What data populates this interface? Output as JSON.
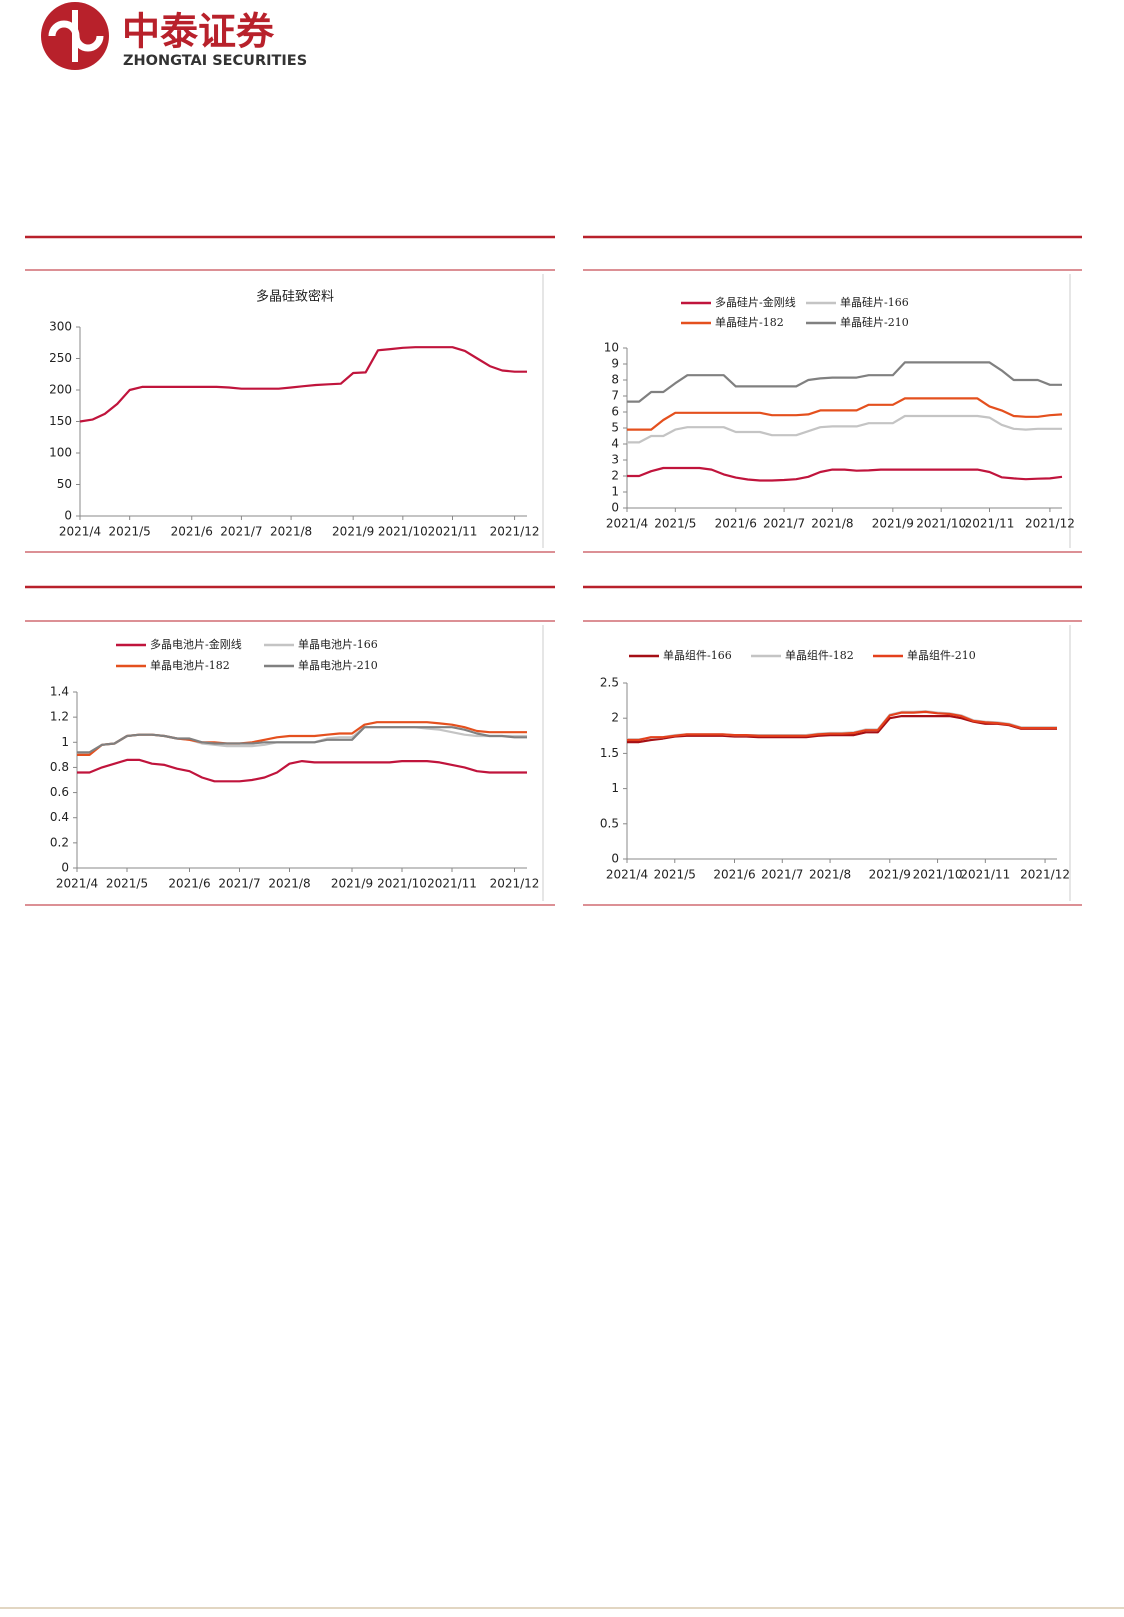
{
  "header": {
    "brand": "中泰证券",
    "brand_en": "ZHONGTAI SECURITIES"
  },
  "chart_data": [
    {
      "type": "line",
      "title": "多晶硅致密料",
      "color": "#c0143c",
      "categories": [
        "2021/4",
        null,
        null,
        null,
        "2021/5",
        null,
        null,
        null,
        null,
        "2021/6",
        null,
        null,
        null,
        "2021/7",
        null,
        null,
        null,
        "2021/8",
        null,
        null,
        null,
        null,
        "2021/9",
        null,
        null,
        null,
        "2021/10",
        null,
        null,
        null,
        "2021/11",
        null,
        null,
        null,
        null,
        "2021/12",
        null
      ],
      "values": [
        150,
        153,
        162,
        178,
        200,
        205,
        205,
        205,
        205,
        205,
        205,
        205,
        204,
        202,
        202,
        202,
        202,
        204,
        206,
        208,
        209,
        210,
        227,
        228,
        263,
        265,
        267,
        268,
        268,
        268,
        268,
        262,
        250,
        238,
        231,
        229,
        229
      ],
      "ylim": [
        0,
        300
      ],
      "yticks": [
        0,
        50,
        100,
        150,
        200,
        250,
        300
      ],
      "grid": false
    },
    {
      "type": "line",
      "categories": [
        "2021/4",
        null,
        null,
        null,
        "2021/5",
        null,
        null,
        null,
        null,
        "2021/6",
        null,
        null,
        null,
        "2021/7",
        null,
        null,
        null,
        "2021/8",
        null,
        null,
        null,
        null,
        "2021/9",
        null,
        null,
        null,
        "2021/10",
        null,
        null,
        null,
        "2021/11",
        null,
        null,
        null,
        null,
        "2021/12",
        null
      ],
      "series": [
        {
          "name": "多晶硅片-金刚线",
          "color": "#c0143c",
          "values": [
            2.0,
            2.0,
            2.3,
            2.5,
            2.5,
            2.5,
            2.5,
            2.4,
            2.1,
            1.9,
            1.78,
            1.72,
            1.72,
            1.75,
            1.8,
            1.95,
            2.25,
            2.4,
            2.4,
            2.33,
            2.35,
            2.4,
            2.4,
            2.4,
            2.4,
            2.4,
            2.4,
            2.4,
            2.4,
            2.4,
            2.25,
            1.92,
            1.85,
            1.8,
            1.83,
            1.85,
            1.95
          ]
        },
        {
          "name": "单晶硅片-166",
          "color": "#c4c4c4",
          "values": [
            4.1,
            4.1,
            4.5,
            4.5,
            4.9,
            5.05,
            5.05,
            5.05,
            5.05,
            4.75,
            4.75,
            4.75,
            4.55,
            4.55,
            4.55,
            4.8,
            5.05,
            5.1,
            5.1,
            5.1,
            5.3,
            5.3,
            5.3,
            5.75,
            5.75,
            5.75,
            5.75,
            5.75,
            5.75,
            5.75,
            5.65,
            5.2,
            4.95,
            4.9,
            4.95,
            4.95,
            4.95
          ]
        },
        {
          "name": "单晶硅片-182",
          "color": "#e4501e",
          "values": [
            4.9,
            4.9,
            4.9,
            5.5,
            5.95,
            5.95,
            5.95,
            5.95,
            5.95,
            5.95,
            5.95,
            5.95,
            5.8,
            5.8,
            5.8,
            5.85,
            6.1,
            6.1,
            6.1,
            6.1,
            6.45,
            6.45,
            6.45,
            6.85,
            6.85,
            6.85,
            6.85,
            6.85,
            6.85,
            6.85,
            6.35,
            6.1,
            5.75,
            5.7,
            5.7,
            5.8,
            5.85
          ]
        },
        {
          "name": "单晶硅片-210",
          "color": "#808080",
          "values": [
            6.65,
            6.65,
            7.25,
            7.25,
            7.8,
            8.3,
            8.3,
            8.3,
            8.3,
            7.6,
            7.6,
            7.6,
            7.6,
            7.6,
            7.6,
            8.0,
            8.1,
            8.15,
            8.15,
            8.15,
            8.3,
            8.3,
            8.3,
            9.1,
            9.1,
            9.1,
            9.1,
            9.1,
            9.1,
            9.1,
            9.1,
            8.6,
            8.0,
            8.0,
            8.0,
            7.7,
            7.7
          ]
        }
      ],
      "ylim": [
        0,
        10
      ],
      "yticks": [
        0,
        1,
        2,
        3,
        4,
        5,
        6,
        7,
        8,
        9,
        10
      ],
      "grid": false
    },
    {
      "type": "line",
      "categories": [
        "2021/4",
        null,
        null,
        null,
        "2021/5",
        null,
        null,
        null,
        null,
        "2021/6",
        null,
        null,
        null,
        "2021/7",
        null,
        null,
        null,
        "2021/8",
        null,
        null,
        null,
        null,
        "2021/9",
        null,
        null,
        null,
        "2021/10",
        null,
        null,
        null,
        "2021/11",
        null,
        null,
        null,
        null,
        "2021/12",
        null
      ],
      "series": [
        {
          "name": "多晶电池片-金刚线",
          "color": "#c0143c",
          "values": [
            0.76,
            0.76,
            0.8,
            0.83,
            0.86,
            0.86,
            0.83,
            0.82,
            0.79,
            0.77,
            0.72,
            0.69,
            0.69,
            0.69,
            0.7,
            0.72,
            0.76,
            0.83,
            0.85,
            0.84,
            0.84,
            0.84,
            0.84,
            0.84,
            0.84,
            0.84,
            0.85,
            0.85,
            0.85,
            0.84,
            0.82,
            0.8,
            0.77,
            0.76,
            0.76,
            0.76,
            0.76
          ]
        },
        {
          "name": "单晶电池片-166",
          "color": "#c4c4c4",
          "values": [
            0.91,
            0.91,
            0.98,
            0.99,
            1.05,
            1.06,
            1.06,
            1.05,
            1.03,
            1.02,
            0.99,
            0.98,
            0.97,
            0.97,
            0.97,
            0.98,
            1.0,
            1.0,
            1.0,
            1.0,
            1.03,
            1.04,
            1.04,
            1.12,
            1.12,
            1.12,
            1.12,
            1.12,
            1.11,
            1.1,
            1.08,
            1.06,
            1.05,
            1.05,
            1.05,
            1.05,
            1.05
          ]
        },
        {
          "name": "单晶电池片-182",
          "color": "#e4501e",
          "values": [
            0.9,
            0.9,
            0.98,
            0.99,
            1.05,
            1.06,
            1.06,
            1.05,
            1.03,
            1.02,
            1.0,
            1.0,
            0.99,
            0.99,
            1.0,
            1.02,
            1.04,
            1.05,
            1.05,
            1.05,
            1.06,
            1.07,
            1.07,
            1.14,
            1.16,
            1.16,
            1.16,
            1.16,
            1.16,
            1.15,
            1.14,
            1.12,
            1.09,
            1.08,
            1.08,
            1.08,
            1.08
          ]
        },
        {
          "name": "单晶电池片-210",
          "color": "#808080",
          "values": [
            0.92,
            0.92,
            0.98,
            0.99,
            1.05,
            1.06,
            1.06,
            1.05,
            1.03,
            1.03,
            1.0,
            0.99,
            0.99,
            0.99,
            0.99,
            1.0,
            1.0,
            1.0,
            1.0,
            1.0,
            1.02,
            1.02,
            1.02,
            1.12,
            1.12,
            1.12,
            1.12,
            1.12,
            1.12,
            1.12,
            1.12,
            1.1,
            1.07,
            1.05,
            1.05,
            1.04,
            1.04
          ]
        }
      ],
      "ylim": [
        0,
        1.4
      ],
      "yticks": [
        0,
        0.2,
        0.4,
        0.6,
        0.8,
        1,
        1.2,
        1.4
      ],
      "grid": false
    },
    {
      "type": "line",
      "categories": [
        "2021/4",
        null,
        null,
        null,
        "2021/5",
        null,
        null,
        null,
        null,
        "2021/6",
        null,
        null,
        null,
        "2021/7",
        null,
        null,
        null,
        "2021/8",
        null,
        null,
        null,
        null,
        "2021/9",
        null,
        null,
        null,
        "2021/10",
        null,
        null,
        null,
        "2021/11",
        null,
        null,
        null,
        null,
        "2021/12",
        null
      ],
      "series": [
        {
          "name": "单晶组件-166",
          "color": "#a50f15",
          "values": [
            1.66,
            1.66,
            1.69,
            1.71,
            1.74,
            1.75,
            1.75,
            1.75,
            1.75,
            1.74,
            1.74,
            1.73,
            1.73,
            1.73,
            1.73,
            1.73,
            1.75,
            1.76,
            1.76,
            1.76,
            1.8,
            1.8,
            2.0,
            2.03,
            2.03,
            2.03,
            2.03,
            2.03,
            2.0,
            1.95,
            1.92,
            1.92,
            1.9,
            1.85,
            1.85,
            1.85,
            1.85
          ]
        },
        {
          "name": "单晶组件-182",
          "color": "#c4c4c4",
          "values": [
            1.7,
            1.7,
            1.72,
            1.73,
            1.76,
            1.77,
            1.77,
            1.77,
            1.77,
            1.76,
            1.76,
            1.76,
            1.76,
            1.76,
            1.76,
            1.76,
            1.78,
            1.79,
            1.79,
            1.8,
            1.84,
            1.84,
            2.05,
            2.09,
            2.09,
            2.1,
            2.08,
            2.07,
            2.04,
            1.97,
            1.95,
            1.94,
            1.92,
            1.87,
            1.87,
            1.87,
            1.87
          ]
        },
        {
          "name": "单晶组件-210",
          "color": "#e4401c",
          "values": [
            1.69,
            1.69,
            1.73,
            1.73,
            1.75,
            1.77,
            1.77,
            1.77,
            1.77,
            1.76,
            1.76,
            1.75,
            1.75,
            1.75,
            1.75,
            1.75,
            1.77,
            1.78,
            1.78,
            1.79,
            1.83,
            1.83,
            2.04,
            2.08,
            2.08,
            2.09,
            2.07,
            2.06,
            2.03,
            1.96,
            1.94,
            1.93,
            1.91,
            1.86,
            1.86,
            1.86,
            1.86
          ]
        }
      ],
      "ylim": [
        0,
        2.5
      ],
      "yticks": [
        0,
        0.5,
        1,
        1.5,
        2,
        2.5
      ],
      "grid": false
    }
  ]
}
